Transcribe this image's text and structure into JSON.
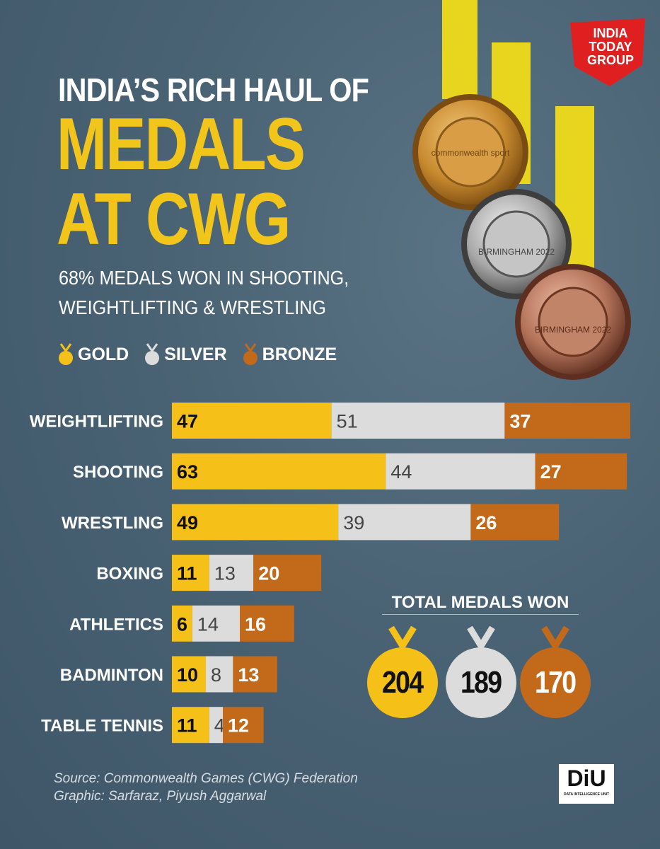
{
  "header": {
    "title_line1": "INDIA’S RICH HAUL OF",
    "title_line2": "MEDALS",
    "title_line3": "AT CWG",
    "subtitle": "68% MEDALS WON IN SHOOTING, WEIGHTLIFTING & WRESTLING"
  },
  "logo": {
    "line1": "INDIA",
    "line2": "TODAY",
    "line3": "GROUP"
  },
  "medal_art": {
    "medal1_text": "commonwealth sport",
    "medal2_text": "BIRMINGHAM 2022",
    "medal3_text": "BIRMINGHAM 2022"
  },
  "legend": {
    "gold": "GOLD",
    "silver": "SILVER",
    "bronze": "BRONZE"
  },
  "colors": {
    "gold": "#f5c118",
    "silver": "#dcdcdc",
    "bronze": "#c2691a",
    "title_yellow": "#f2c51b",
    "logo_red": "#e02020"
  },
  "chart_data": {
    "type": "bar",
    "orientation": "horizontal-stacked",
    "categories": [
      "WEIGHTLIFTING",
      "SHOOTING",
      "WRESTLING",
      "BOXING",
      "ATHLETICS",
      "BADMINTON",
      "TABLE TENNIS"
    ],
    "series": [
      {
        "name": "GOLD",
        "values": [
          47,
          63,
          49,
          11,
          6,
          10,
          11
        ]
      },
      {
        "name": "SILVER",
        "values": [
          51,
          44,
          39,
          13,
          14,
          8,
          4
        ]
      },
      {
        "name": "BRONZE",
        "values": [
          37,
          27,
          26,
          20,
          16,
          13,
          12
        ]
      }
    ]
  },
  "totals": {
    "title": "TOTAL MEDALS WON",
    "gold": "204",
    "silver": "189",
    "bronze": "170"
  },
  "source": {
    "line1": "Source: Commonwealth Games (CWG) Federation",
    "line2": "Graphic: Sarfaraz, Piyush Aggarwal"
  },
  "diu": {
    "main": "DiU",
    "sub": "DATA INTELLIGENCE UNIT"
  }
}
